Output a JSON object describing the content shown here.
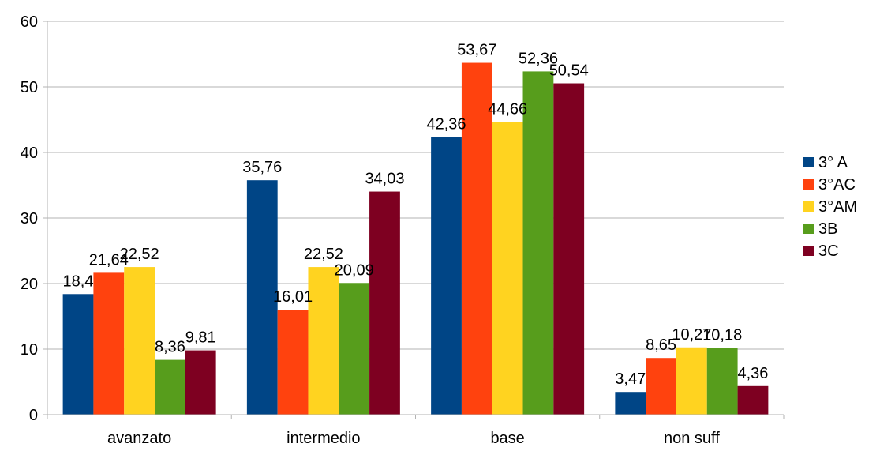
{
  "chart_data": {
    "type": "bar",
    "categories": [
      "avanzato",
      "intermedio",
      "base",
      "non suff"
    ],
    "series": [
      {
        "name": "3° A",
        "color": "#004586",
        "values": [
          18.4,
          35.76,
          42.36,
          3.47
        ],
        "labels": [
          "18,4",
          "35,76",
          "42,36",
          "3,47"
        ]
      },
      {
        "name": "3°AC",
        "color": "#ff420e",
        "values": [
          21.64,
          16.01,
          53.67,
          8.65
        ],
        "labels": [
          "21,64",
          "16,01",
          "53,67",
          "8,65"
        ]
      },
      {
        "name": "3°AM",
        "color": "#ffd320",
        "values": [
          22.52,
          22.52,
          44.66,
          10.27
        ],
        "labels": [
          "22,52",
          "22,52",
          "44,66",
          "10,27"
        ]
      },
      {
        "name": "3B",
        "color": "#579d1c",
        "values": [
          8.36,
          20.09,
          52.36,
          10.18
        ],
        "labels": [
          "8,36",
          "20,09",
          "52,36",
          "10,18"
        ]
      },
      {
        "name": "3C",
        "color": "#7e0021",
        "values": [
          9.81,
          34.03,
          50.54,
          4.36
        ],
        "labels": [
          "9,81",
          "34,03",
          "50,54",
          "4,36"
        ]
      }
    ],
    "ylim": [
      0,
      60
    ],
    "yticks": [
      0,
      10,
      20,
      30,
      40,
      50,
      60
    ],
    "grid": true,
    "legend": "right",
    "title": "",
    "xlabel": "",
    "ylabel": ""
  }
}
